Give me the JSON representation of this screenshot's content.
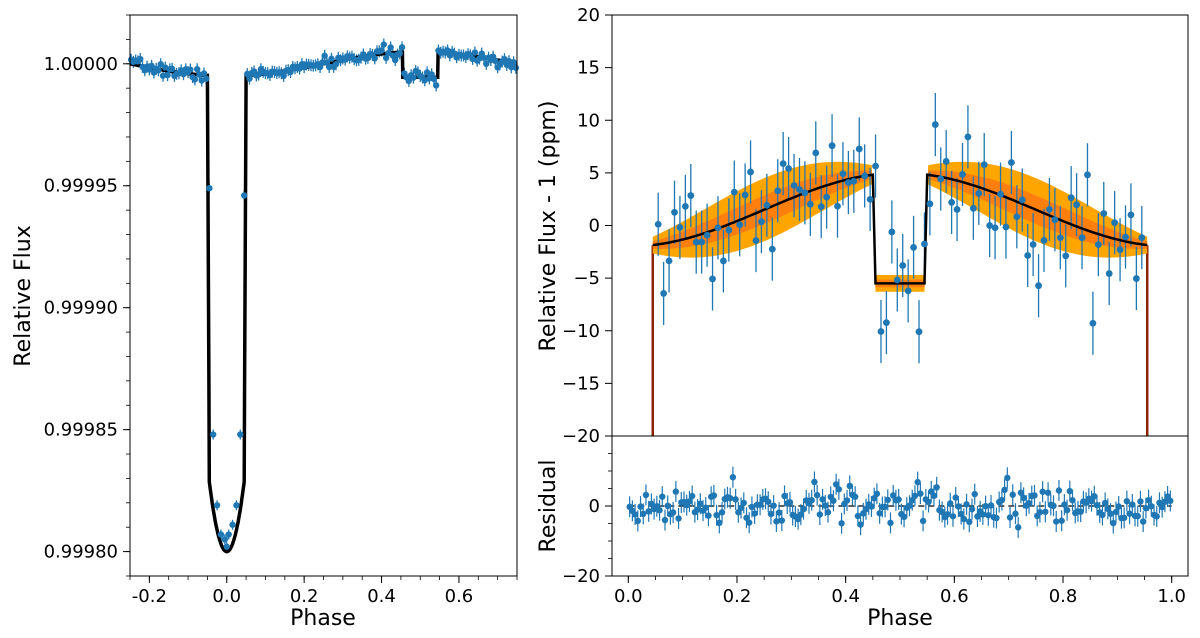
{
  "colors": {
    "points": "#1f77b4",
    "model": "#000000",
    "band_outer": "#ffa500",
    "band_inner": "#ff7f0e",
    "wings": "#8b2500",
    "frame": "#000000"
  },
  "chart_data": [
    {
      "type": "scatter",
      "id": "transit-panel",
      "xlabel": "Phase",
      "ylabel": "Relative Flux",
      "xlim": [
        -0.25,
        0.75
      ],
      "ylim": [
        0.99979,
        1.00002
      ],
      "xticks": [
        "-0.2",
        "0.0",
        "0.2",
        "0.4",
        "0.6"
      ],
      "yticks": [
        "1.00000",
        "0.99995",
        "0.99990",
        "0.99985",
        "0.99980"
      ],
      "transit": {
        "center": 0.0,
        "half_width": 0.05,
        "min_flux": 0.999805
      },
      "eclipse": {
        "start": 0.455,
        "end": 0.545,
        "depth": 5.5e-06
      },
      "phase_curve_amplitude": 5e-06,
      "in_transit_points": [
        {
          "x": -0.045,
          "y": 0.999949
        },
        {
          "x": -0.035,
          "y": 0.999848
        },
        {
          "x": -0.025,
          "y": 0.999819
        },
        {
          "x": -0.015,
          "y": 0.999807
        },
        {
          "x": -0.005,
          "y": 0.999805
        },
        {
          "x": 0.0,
          "y": 0.999802
        },
        {
          "x": 0.005,
          "y": 0.999807
        },
        {
          "x": 0.015,
          "y": 0.999811
        },
        {
          "x": 0.025,
          "y": 0.999819
        },
        {
          "x": 0.035,
          "y": 0.999848
        },
        {
          "x": 0.045,
          "y": 0.999946
        }
      ]
    },
    {
      "type": "scatter",
      "id": "phase-curve-panel",
      "xlabel": "",
      "ylabel": "Relative Flux - 1 (ppm)",
      "xlim": [
        -0.03,
        1.03
      ],
      "ylim": [
        -20,
        20
      ],
      "xticks": [],
      "yticks": [
        "20",
        "15",
        "10",
        "5",
        "0",
        "−5",
        "−10",
        "−15",
        "−20"
      ],
      "transit_ingress": 0.045,
      "transit_egress": 0.955,
      "eclipse": {
        "start": 0.455,
        "end": 0.545,
        "level": -5.5
      },
      "model_amplitude": 5.0,
      "model_offset": -2.0,
      "points_count": 90,
      "error_ppm": 3.0
    },
    {
      "type": "scatter",
      "id": "residual-panel",
      "xlabel": "Phase",
      "ylabel": "Residual",
      "xlim": [
        -0.03,
        1.03
      ],
      "ylim": [
        -20,
        20
      ],
      "xticks": [
        "0.0",
        "0.2",
        "0.4",
        "0.6",
        "0.8",
        "1.0"
      ],
      "yticks": [
        "0",
        "−20"
      ],
      "zero_line": 0,
      "points_count": 200,
      "error_ppm": 3.0
    }
  ]
}
